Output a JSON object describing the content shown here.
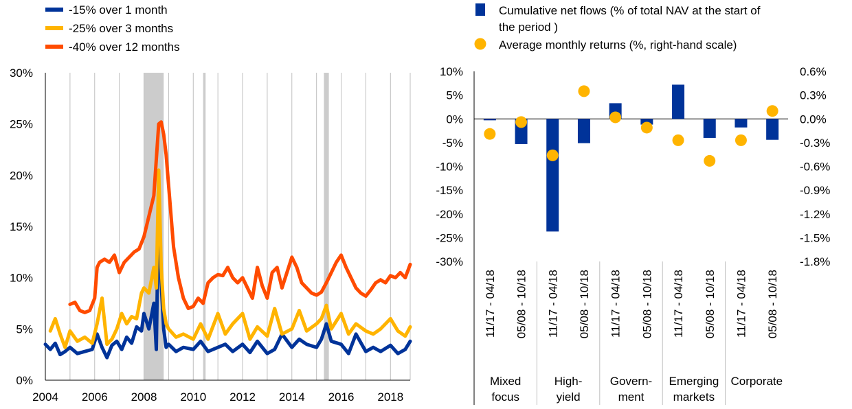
{
  "chart_data": [
    {
      "type": "line",
      "legend_position": "top-left",
      "x_ticks": [
        "2004",
        "2006",
        "2008",
        "2010",
        "2012",
        "2014",
        "2016",
        "2018"
      ],
      "y_ticks": [
        "0%",
        "5%",
        "10%",
        "15%",
        "20%",
        "25%",
        "30%"
      ],
      "xlim": [
        2004,
        2018.8
      ],
      "ylim": [
        0,
        30
      ],
      "grid": "vertical",
      "shaded_periods": [
        [
          2008.0,
          2008.8
        ],
        [
          2010.4,
          2010.5
        ],
        [
          2015.3,
          2015.5
        ]
      ],
      "series": [
        {
          "name": "-15% over 1 month",
          "color": "#003399",
          "x": [
            2004.0,
            2004.2,
            2004.4,
            2004.6,
            2004.8,
            2005.0,
            2005.3,
            2005.6,
            2005.9,
            2006.1,
            2006.3,
            2006.5,
            2006.7,
            2006.9,
            2007.1,
            2007.3,
            2007.5,
            2007.7,
            2007.9,
            2008.0,
            2008.2,
            2008.4,
            2008.5,
            2008.6,
            2008.7,
            2008.8,
            2008.9,
            2009.0,
            2009.3,
            2009.6,
            2010.0,
            2010.3,
            2010.6,
            2011.0,
            2011.3,
            2011.6,
            2012.0,
            2012.3,
            2012.6,
            2013.0,
            2013.3,
            2013.6,
            2014.0,
            2014.3,
            2014.6,
            2015.0,
            2015.2,
            2015.4,
            2015.6,
            2016.0,
            2016.3,
            2016.6,
            2017.0,
            2017.3,
            2017.6,
            2018.0,
            2018.3,
            2018.6,
            2018.8
          ],
          "values": [
            3.5,
            3.0,
            3.6,
            2.5,
            2.8,
            3.2,
            2.6,
            2.8,
            3.0,
            4.5,
            3.2,
            2.2,
            3.4,
            3.8,
            3.0,
            4.2,
            3.6,
            5.2,
            4.8,
            6.5,
            5.0,
            7.5,
            3.0,
            18.0,
            9.5,
            5.0,
            3.2,
            3.5,
            2.8,
            3.2,
            3.0,
            3.8,
            2.8,
            3.2,
            3.5,
            2.8,
            3.5,
            2.7,
            3.8,
            2.6,
            3.0,
            4.5,
            3.2,
            4.0,
            3.5,
            3.2,
            4.0,
            5.5,
            3.8,
            3.5,
            2.6,
            4.5,
            2.8,
            3.2,
            2.8,
            3.4,
            2.6,
            3.0,
            3.8
          ]
        },
        {
          "name": "-25% over 3 months",
          "color": "#ffb400",
          "x": [
            2004.2,
            2004.4,
            2004.6,
            2004.8,
            2005.0,
            2005.3,
            2005.6,
            2005.9,
            2006.1,
            2006.3,
            2006.5,
            2006.7,
            2006.9,
            2007.1,
            2007.3,
            2007.5,
            2007.7,
            2007.9,
            2008.0,
            2008.2,
            2008.4,
            2008.5,
            2008.6,
            2008.7,
            2008.8,
            2008.9,
            2009.0,
            2009.3,
            2009.6,
            2010.0,
            2010.3,
            2010.6,
            2011.0,
            2011.3,
            2011.6,
            2012.0,
            2012.3,
            2012.6,
            2013.0,
            2013.3,
            2013.6,
            2014.0,
            2014.3,
            2014.6,
            2015.0,
            2015.2,
            2015.4,
            2015.6,
            2016.0,
            2016.3,
            2016.6,
            2017.0,
            2017.3,
            2017.6,
            2018.0,
            2018.3,
            2018.6,
            2018.8
          ],
          "values": [
            4.8,
            6.0,
            4.5,
            3.2,
            4.8,
            3.8,
            4.2,
            3.6,
            5.5,
            8.0,
            3.5,
            4.0,
            5.0,
            6.5,
            5.5,
            6.2,
            6.0,
            8.5,
            9.0,
            8.5,
            11.0,
            9.0,
            20.5,
            11.0,
            7.0,
            5.5,
            5.0,
            4.2,
            4.5,
            4.0,
            5.5,
            4.0,
            6.5,
            4.5,
            5.5,
            6.5,
            4.0,
            5.2,
            4.3,
            7.0,
            4.5,
            5.0,
            6.8,
            4.8,
            5.5,
            6.0,
            7.3,
            5.0,
            6.5,
            4.5,
            5.5,
            4.8,
            4.5,
            5.0,
            6.0,
            4.8,
            4.3,
            5.2
          ]
        },
        {
          "name": "-40% over 12 months",
          "color": "#ff4b00",
          "x": [
            2005.0,
            2005.2,
            2005.4,
            2005.6,
            2005.8,
            2006.0,
            2006.1,
            2006.2,
            2006.4,
            2006.6,
            2006.8,
            2007.0,
            2007.2,
            2007.4,
            2007.6,
            2007.8,
            2008.0,
            2008.2,
            2008.4,
            2008.6,
            2008.7,
            2008.8,
            2008.9,
            2009.0,
            2009.2,
            2009.4,
            2009.6,
            2009.8,
            2010.0,
            2010.2,
            2010.4,
            2010.6,
            2010.8,
            2011.0,
            2011.2,
            2011.4,
            2011.6,
            2011.8,
            2012.0,
            2012.2,
            2012.4,
            2012.6,
            2012.8,
            2013.0,
            2013.2,
            2013.4,
            2013.6,
            2013.8,
            2014.0,
            2014.2,
            2014.4,
            2014.6,
            2014.8,
            2015.0,
            2015.2,
            2015.4,
            2015.6,
            2015.8,
            2016.0,
            2016.2,
            2016.4,
            2016.6,
            2016.8,
            2017.0,
            2017.2,
            2017.4,
            2017.6,
            2017.8,
            2018.0,
            2018.2,
            2018.4,
            2018.6,
            2018.8
          ],
          "values": [
            7.4,
            7.6,
            6.8,
            6.6,
            6.8,
            8.0,
            11.0,
            11.5,
            11.8,
            11.5,
            12.2,
            10.5,
            11.5,
            12.0,
            12.5,
            12.8,
            14.0,
            16.0,
            18.0,
            25.0,
            25.2,
            24.0,
            22.0,
            19.0,
            13.0,
            10.0,
            8.0,
            7.0,
            7.2,
            8.0,
            7.5,
            9.5,
            10.0,
            10.3,
            10.2,
            11.0,
            10.0,
            9.5,
            10.0,
            9.0,
            8.0,
            11.0,
            9.2,
            8.0,
            10.5,
            11.0,
            9.0,
            10.5,
            12.0,
            11.0,
            9.5,
            9.0,
            8.5,
            8.3,
            8.6,
            9.5,
            10.5,
            11.5,
            12.2,
            11.0,
            10.0,
            9.0,
            8.5,
            8.2,
            8.8,
            9.5,
            9.8,
            9.5,
            10.2,
            10.0,
            10.5,
            10.0,
            11.3
          ]
        }
      ]
    },
    {
      "type": "bar",
      "legend_position": "top",
      "left_ticks": [
        "10%",
        "5%",
        "0%",
        "-5%",
        "-10%",
        "-15%",
        "-20%",
        "-25%",
        "-30%"
      ],
      "right_ticks": [
        "0.6%",
        "0.3%",
        "0.0%",
        "-0.3%",
        "-0.6%",
        "-0.9%",
        "-1.2%",
        "-1.5%",
        "-1.8%"
      ],
      "ylim_left": [
        -30,
        10
      ],
      "ylim_right": [
        -1.8,
        0.6
      ],
      "categories": [
        "Mixed focus",
        "High-yield",
        "Govern-ment",
        "Emerging markets",
        "Corporate"
      ],
      "category_labels": [
        [
          "Mixed",
          "focus"
        ],
        [
          "High-",
          "yield"
        ],
        [
          "Govern-",
          "ment"
        ],
        [
          "Emerging",
          "markets"
        ],
        [
          "Corporate",
          ""
        ]
      ],
      "periods": [
        "11/17 - 04/18",
        "05/08 - 10/18"
      ],
      "series": [
        {
          "name": "Cumulative net flows (% of total NAV at the start of the period )",
          "name_lines": [
            "Cumulative net flows (% of total NAV at the start of",
            "the period )"
          ],
          "kind": "bar",
          "axis": "left",
          "color": "#003399",
          "values": [
            [
              -0.3,
              -5.3
            ],
            [
              -23.7,
              -5.1
            ],
            [
              3.3,
              -1.2
            ],
            [
              7.2,
              -4.0
            ],
            [
              -1.8,
              -4.4
            ]
          ]
        },
        {
          "name": "Average monthly returns (%, right-hand scale)",
          "kind": "dot",
          "axis": "right",
          "color": "#ffb400",
          "values": [
            [
              -0.19,
              -0.04
            ],
            [
              -0.46,
              0.35
            ],
            [
              0.02,
              -0.11
            ],
            [
              -0.27,
              -0.53
            ],
            [
              -0.27,
              0.1
            ]
          ]
        }
      ]
    }
  ]
}
